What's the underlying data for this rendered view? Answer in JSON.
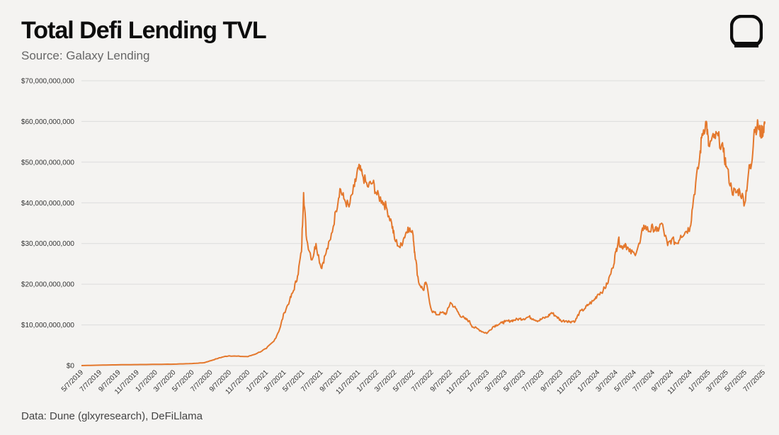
{
  "header": {
    "title": "Total Defi Lending TVL",
    "subtitle": "Source: Galaxy Lending"
  },
  "footer": {
    "source": "Data: Dune (glxyresearch), DeFiLlama"
  },
  "logo": {
    "icon": "galaxy-logo-icon"
  },
  "colors": {
    "line": "#e4782d",
    "grid": "#dcdcdc",
    "background": "#f4f3f1"
  },
  "chart_data": {
    "type": "line",
    "title": "Total Defi Lending TVL",
    "xlabel": "",
    "ylabel": "",
    "ylim": [
      0,
      70000000000
    ],
    "grid": "horizontal",
    "legend": "none",
    "y_ticks": [
      "$0",
      "$10,000,000,000",
      "$20,000,000,000",
      "$30,000,000,000",
      "$40,000,000,000",
      "$50,000,000,000",
      "$60,000,000,000",
      "$70,000,000,000"
    ],
    "x_ticks": [
      "5/7/2019",
      "7/7/2019",
      "9/7/2019",
      "11/7/2019",
      "1/7/2020",
      "3/7/2020",
      "5/7/2020",
      "7/7/2020",
      "9/7/2020",
      "11/7/2020",
      "1/7/2021",
      "3/7/2021",
      "5/7/2021",
      "7/7/2021",
      "9/7/2021",
      "11/7/2021",
      "1/7/2022",
      "3/7/2022",
      "5/7/2022",
      "7/7/2022",
      "9/7/2022",
      "11/7/2022",
      "1/7/2023",
      "3/7/2023",
      "5/7/2023",
      "7/7/2023",
      "9/7/2023",
      "11/7/2023",
      "1/7/2024",
      "3/7/2024",
      "5/7/2024",
      "7/7/2024",
      "9/7/2024",
      "11/7/2024",
      "1/7/2025",
      "3/7/2025",
      "5/7/2025",
      "7/7/2025"
    ],
    "series": [
      {
        "x": [
          "2019-05-07",
          "2019-07-07",
          "2019-09-07",
          "2019-11-07",
          "2020-01-07",
          "2020-03-07",
          "2020-05-07",
          "2020-06-15",
          "2020-07-07",
          "2020-08-01",
          "2020-08-20",
          "2020-09-07",
          "2020-10-01",
          "2020-11-07",
          "2020-12-07",
          "2021-01-07",
          "2021-02-01",
          "2021-02-20",
          "2021-03-07",
          "2021-03-25",
          "2021-04-07",
          "2021-04-20",
          "2021-05-03",
          "2021-05-10",
          "2021-05-20",
          "2021-06-07",
          "2021-06-20",
          "2021-07-07",
          "2021-07-20",
          "2021-08-07",
          "2021-08-25",
          "2021-09-07",
          "2021-09-20",
          "2021-10-07",
          "2021-10-25",
          "2021-11-07",
          "2021-11-20",
          "2021-12-07",
          "2021-12-25",
          "2022-01-07",
          "2022-01-25",
          "2022-02-07",
          "2022-02-25",
          "2022-03-07",
          "2022-03-25",
          "2022-04-07",
          "2022-04-20",
          "2022-05-07",
          "2022-05-12",
          "2022-05-25",
          "2022-06-10",
          "2022-06-18",
          "2022-07-07",
          "2022-07-25",
          "2022-08-10",
          "2022-08-25",
          "2022-09-07",
          "2022-09-25",
          "2022-10-07",
          "2022-10-25",
          "2022-11-07",
          "2022-11-20",
          "2022-12-07",
          "2022-12-25",
          "2023-01-07",
          "2023-01-25",
          "2023-02-07",
          "2023-02-25",
          "2023-03-07",
          "2023-03-25",
          "2023-04-07",
          "2023-04-25",
          "2023-05-07",
          "2023-05-25",
          "2023-06-07",
          "2023-06-25",
          "2023-07-07",
          "2023-07-25",
          "2023-08-07",
          "2023-08-25",
          "2023-09-07",
          "2023-09-25",
          "2023-10-07",
          "2023-10-25",
          "2023-11-07",
          "2023-11-25",
          "2023-12-07",
          "2023-12-25",
          "2024-01-07",
          "2024-01-25",
          "2024-02-07",
          "2024-02-25",
          "2024-03-07",
          "2024-03-15",
          "2024-03-25",
          "2024-04-07",
          "2024-04-20",
          "2024-05-07",
          "2024-05-25",
          "2024-06-07",
          "2024-06-25",
          "2024-07-07",
          "2024-07-20",
          "2024-08-05",
          "2024-08-25",
          "2024-09-07",
          "2024-09-25",
          "2024-10-07",
          "2024-10-25",
          "2024-11-07",
          "2024-11-20",
          "2024-12-07",
          "2024-12-17",
          "2024-12-31",
          "2025-01-07",
          "2025-01-25",
          "2025-02-07",
          "2025-02-25",
          "2025-03-07",
          "2025-03-25",
          "2025-04-07",
          "2025-04-20",
          "2025-05-07",
          "2025-05-20",
          "2025-05-28",
          "2025-06-07",
          "2025-06-20",
          "2025-06-28",
          "2025-07-07",
          "2025-07-12"
        ],
        "values": [
          0,
          100000000,
          200000000,
          250000000,
          300000000,
          350000000,
          500000000,
          700000000,
          1200000000,
          1800000000,
          2200000000,
          2400000000,
          2300000000,
          2200000000,
          3000000000,
          4200000000,
          6000000000,
          9000000000,
          13000000000,
          16000000000,
          18500000000,
          22000000000,
          28000000000,
          42500000000,
          31000000000,
          26000000000,
          30000000000,
          24000000000,
          27000000000,
          31000000000,
          38000000000,
          43500000000,
          41000000000,
          39000000000,
          44000000000,
          48500000000,
          47000000000,
          44000000000,
          45000000000,
          42000000000,
          40500000000,
          39000000000,
          35000000000,
          31000000000,
          29000000000,
          31500000000,
          34000000000,
          32000000000,
          28000000000,
          20500000000,
          18500000000,
          20500000000,
          13500000000,
          12500000000,
          13000000000,
          12800000000,
          15500000000,
          14000000000,
          12500000000,
          11500000000,
          11000000000,
          9500000000,
          9000000000,
          8200000000,
          8000000000,
          9500000000,
          10000000000,
          10500000000,
          10800000000,
          11000000000,
          11200000000,
          11500000000,
          11500000000,
          12000000000,
          11500000000,
          11000000000,
          11500000000,
          12000000000,
          13000000000,
          12000000000,
          11000000000,
          11000000000,
          10800000000,
          11000000000,
          13000000000,
          14000000000,
          15000000000,
          16000000000,
          17500000000,
          18500000000,
          20000000000,
          24000000000,
          28000000000,
          31000000000,
          29000000000,
          30000000000,
          28000000000,
          27500000000,
          30000000000,
          34500000000,
          33000000000,
          34000000000,
          33000000000,
          35000000000,
          29500000000,
          31000000000,
          30000000000,
          32000000000,
          33000000000,
          34000000000,
          42000000000,
          50000000000,
          57000000000,
          60000000000,
          54000000000,
          56000000000,
          56500000000,
          52500000000,
          49000000000,
          43000000000,
          42500000000,
          43000000000,
          40000000000,
          48000000000,
          49000000000,
          58000000000,
          59000000000,
          57000000000,
          58000000000,
          60000000000
        ]
      }
    ]
  }
}
